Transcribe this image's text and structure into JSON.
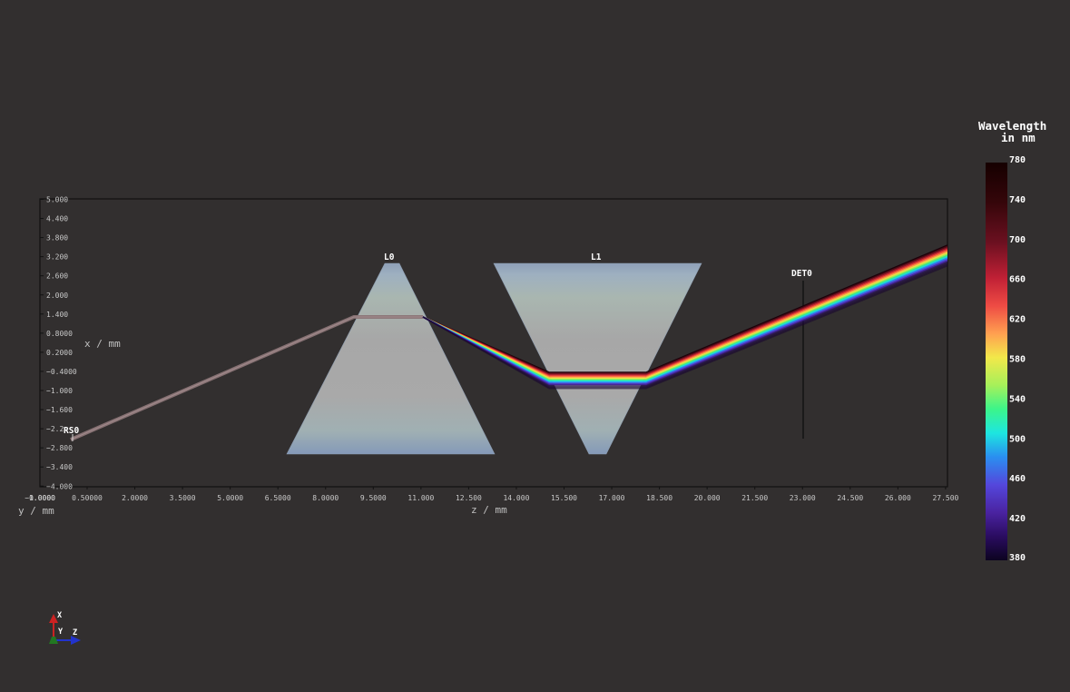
{
  "plot": {
    "x_axis_label": "z / mm",
    "y_axis_label": "x / mm",
    "z_axis_label": "y / mm",
    "z_ticks": [
      "0.50000",
      "2.0000",
      "3.5000",
      "5.0000",
      "6.5000",
      "8.0000",
      "9.5000",
      "11.000",
      "12.500",
      "14.000",
      "15.500",
      "17.000",
      "18.500",
      "20.000",
      "21.500",
      "23.000",
      "24.500",
      "26.000",
      "27.500"
    ],
    "x_ticks": [
      "5.000",
      "4.400",
      "3.800",
      "3.200",
      "2.600",
      "2.000",
      "1.400",
      "0.8000",
      "0.2000",
      "−0.4000",
      "−1.000",
      "−1.600",
      "−2.2",
      "−2.800",
      "−3.400",
      "−4.000"
    ],
    "y_ticks_overlap": [
      "−1.0000",
      "0.0000",
      "1.0000"
    ]
  },
  "elements": {
    "source": "RS0",
    "lens0": "L0",
    "lens1": "L1",
    "detector": "DET0"
  },
  "colorbar": {
    "title_line1": "Wavelength",
    "title_line2": "in nm",
    "ticks": [
      "780",
      "740",
      "700",
      "660",
      "620",
      "580",
      "540",
      "500",
      "460",
      "420",
      "380"
    ]
  },
  "orientation": {
    "x": "X",
    "y": "Y",
    "z": "Z"
  },
  "colors": {
    "background": "#322f2f",
    "frame": "#111111",
    "lens_fill": "#a8a8a8",
    "lens_edge": "#7a8fa8",
    "beam_single": "#8a7476",
    "axis_x": "#cc2222",
    "axis_y": "#227722",
    "axis_z": "#2233cc"
  }
}
